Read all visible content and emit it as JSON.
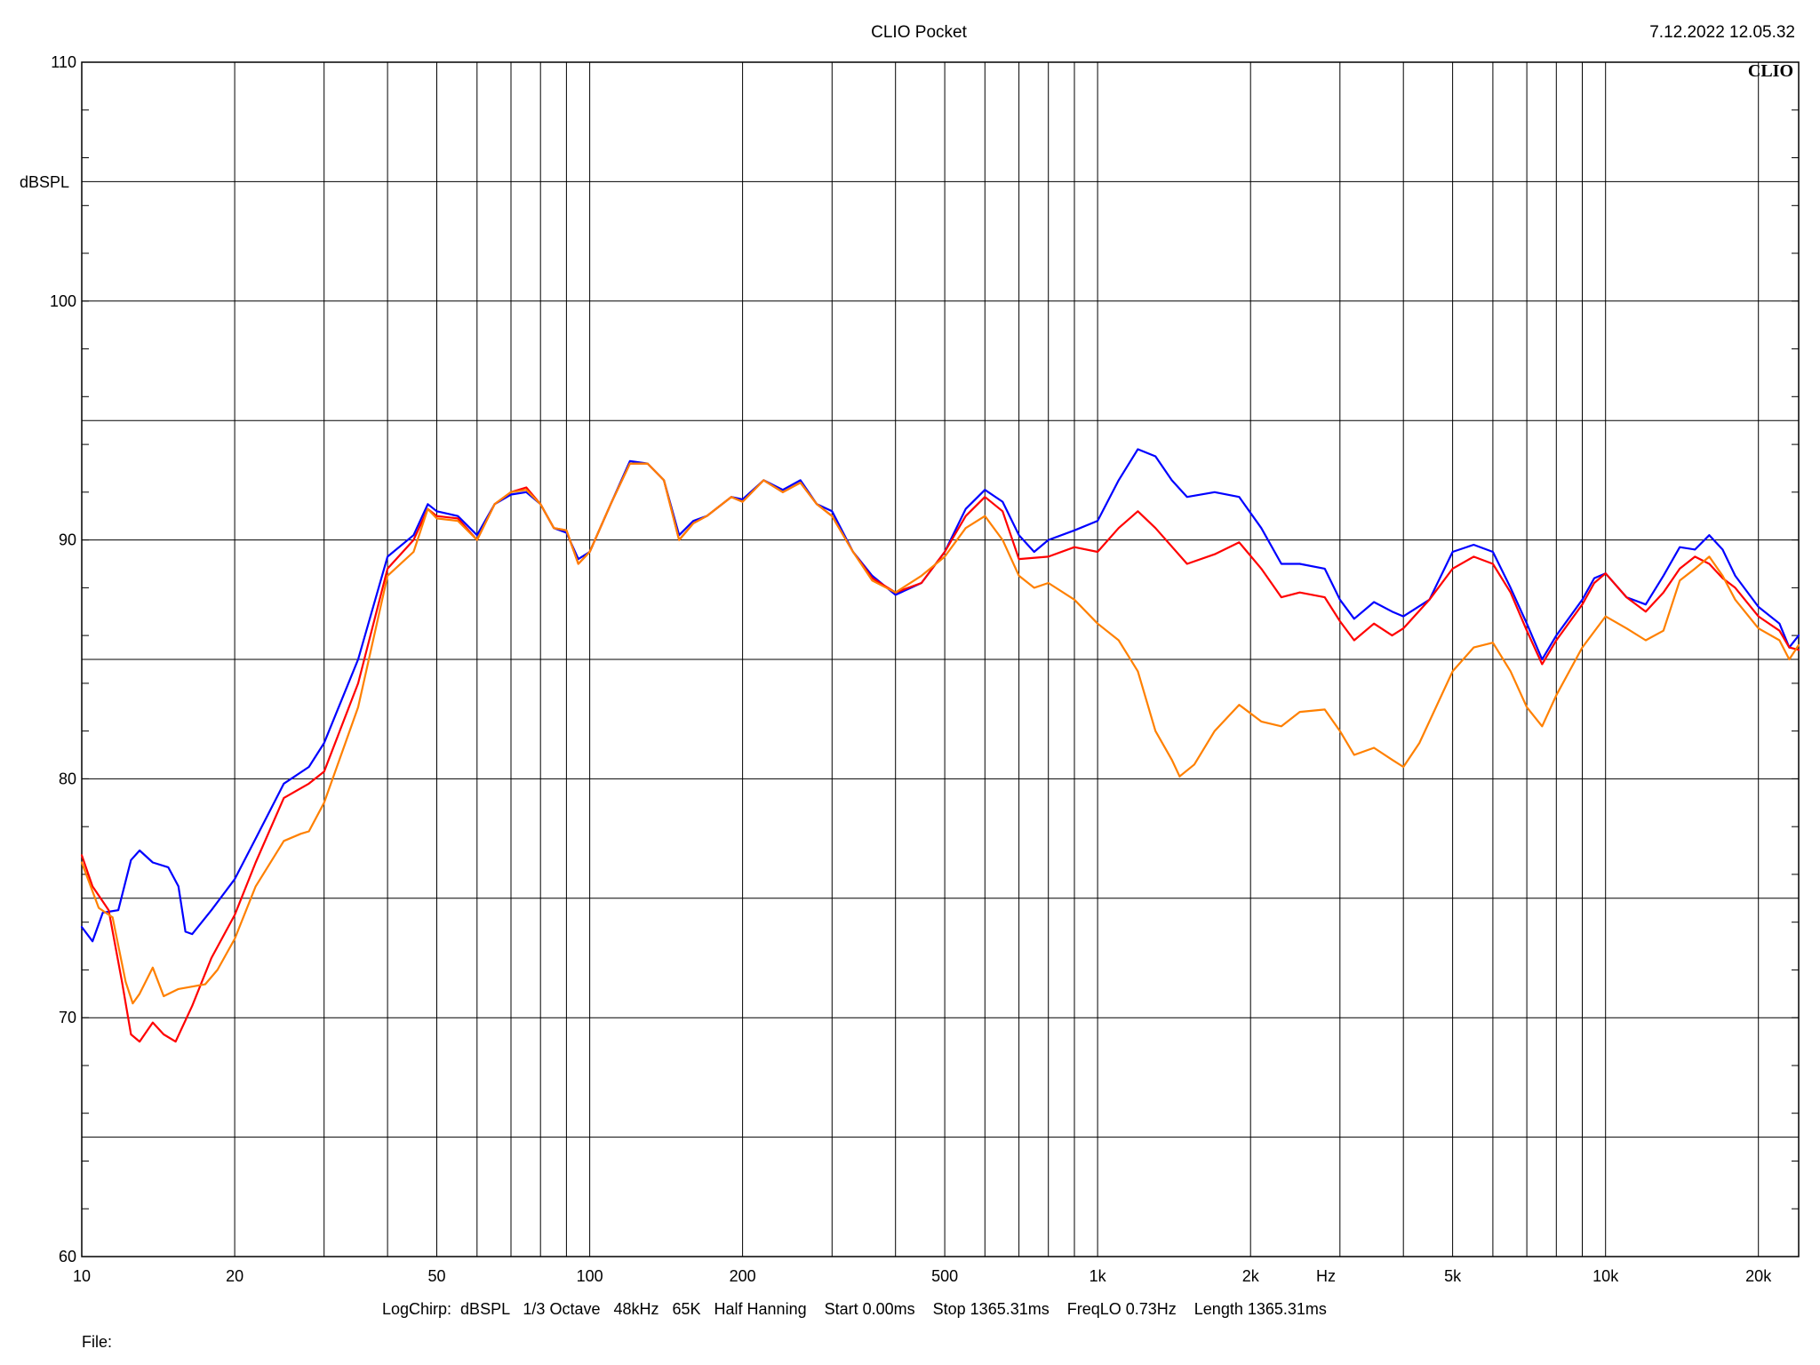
{
  "header": {
    "title": "CLIO Pocket",
    "timestamp": "7.12.2022 12.05.32",
    "logo": "CLIO"
  },
  "footer": {
    "settings": "LogChirp:  dBSPL   1/3 Octave   48kHz   65K   Half Hanning    Start 0.00ms    Stop 1365.31ms    FreqLO 0.73Hz    Length 1365.31ms",
    "file_label": "File:"
  },
  "chart_data": {
    "type": "line",
    "title": "CLIO Pocket",
    "xscale": "log",
    "xlim": [
      10,
      24000
    ],
    "ylim": [
      60,
      110
    ],
    "ylabel": "dBSPL",
    "xlabel": "Hz",
    "grid": true,
    "y_ticks": [
      60,
      70,
      80,
      90,
      100,
      110
    ],
    "y_grid": [
      60,
      65,
      70,
      75,
      80,
      85,
      90,
      95,
      100,
      105,
      110
    ],
    "x_tick_labels": [
      {
        "v": 10,
        "label": "10"
      },
      {
        "v": 20,
        "label": "20"
      },
      {
        "v": 50,
        "label": "50"
      },
      {
        "v": 100,
        "label": "100"
      },
      {
        "v": 200,
        "label": "200"
      },
      {
        "v": 500,
        "label": "500"
      },
      {
        "v": 1000,
        "label": "1k"
      },
      {
        "v": 2000,
        "label": "2k"
      },
      {
        "v": 5000,
        "label": "5k"
      },
      {
        "v": 10000,
        "label": "10k"
      },
      {
        "v": 20000,
        "label": "20k"
      }
    ],
    "x_grid": [
      20,
      30,
      40,
      50,
      60,
      70,
      80,
      90,
      100,
      200,
      300,
      400,
      500,
      600,
      700,
      800,
      900,
      1000,
      2000,
      3000,
      4000,
      5000,
      6000,
      7000,
      8000,
      9000,
      10000,
      20000
    ],
    "colors": {
      "blue": "#0000ff",
      "red": "#ff0000",
      "orange": "#ff8000"
    },
    "series": [
      {
        "color": "#0000ff",
        "points": [
          [
            10,
            73.8
          ],
          [
            10.5,
            73.2
          ],
          [
            11,
            74.4
          ],
          [
            11.8,
            74.5
          ],
          [
            12.5,
            76.6
          ],
          [
            13,
            77.0
          ],
          [
            13.8,
            76.5
          ],
          [
            14.8,
            76.3
          ],
          [
            15.5,
            75.5
          ],
          [
            16,
            73.6
          ],
          [
            16.5,
            73.5
          ],
          [
            18,
            74.5
          ],
          [
            20,
            75.8
          ],
          [
            22,
            77.5
          ],
          [
            25,
            79.8
          ],
          [
            28,
            80.5
          ],
          [
            30,
            81.5
          ],
          [
            35,
            85.0
          ],
          [
            40,
            89.3
          ],
          [
            45,
            90.2
          ],
          [
            48,
            91.5
          ],
          [
            50,
            91.2
          ],
          [
            55,
            91.0
          ],
          [
            60,
            90.2
          ],
          [
            65,
            91.5
          ],
          [
            70,
            91.9
          ],
          [
            75,
            92.0
          ],
          [
            80,
            91.5
          ],
          [
            85,
            90.5
          ],
          [
            90,
            90.3
          ],
          [
            95,
            89.2
          ],
          [
            100,
            89.5
          ],
          [
            110,
            91.5
          ],
          [
            120,
            93.3
          ],
          [
            130,
            93.2
          ],
          [
            140,
            92.5
          ],
          [
            150,
            90.2
          ],
          [
            160,
            90.8
          ],
          [
            170,
            91.0
          ],
          [
            190,
            91.8
          ],
          [
            200,
            91.7
          ],
          [
            220,
            92.5
          ],
          [
            240,
            92.1
          ],
          [
            260,
            92.5
          ],
          [
            280,
            91.5
          ],
          [
            300,
            91.2
          ],
          [
            330,
            89.5
          ],
          [
            360,
            88.5
          ],
          [
            400,
            87.7
          ],
          [
            450,
            88.2
          ],
          [
            500,
            89.5
          ],
          [
            550,
            91.3
          ],
          [
            600,
            92.1
          ],
          [
            650,
            91.6
          ],
          [
            700,
            90.2
          ],
          [
            750,
            89.5
          ],
          [
            800,
            90.0
          ],
          [
            900,
            90.4
          ],
          [
            1000,
            90.8
          ],
          [
            1100,
            92.5
          ],
          [
            1200,
            93.8
          ],
          [
            1300,
            93.5
          ],
          [
            1400,
            92.5
          ],
          [
            1500,
            91.8
          ],
          [
            1700,
            92.0
          ],
          [
            1900,
            91.8
          ],
          [
            2100,
            90.5
          ],
          [
            2300,
            89.0
          ],
          [
            2500,
            89.0
          ],
          [
            2800,
            88.8
          ],
          [
            3000,
            87.5
          ],
          [
            3200,
            86.7
          ],
          [
            3500,
            87.4
          ],
          [
            3800,
            87.0
          ],
          [
            4000,
            86.8
          ],
          [
            4500,
            87.5
          ],
          [
            5000,
            89.5
          ],
          [
            5500,
            89.8
          ],
          [
            6000,
            89.5
          ],
          [
            6500,
            88.0
          ],
          [
            7000,
            86.5
          ],
          [
            7500,
            85.0
          ],
          [
            8000,
            86.0
          ],
          [
            9000,
            87.5
          ],
          [
            9500,
            88.4
          ],
          [
            10000,
            88.6
          ],
          [
            11000,
            87.6
          ],
          [
            12000,
            87.3
          ],
          [
            13000,
            88.5
          ],
          [
            14000,
            89.7
          ],
          [
            15000,
            89.6
          ],
          [
            16000,
            90.2
          ],
          [
            17000,
            89.6
          ],
          [
            18000,
            88.5
          ],
          [
            20000,
            87.2
          ],
          [
            22000,
            86.5
          ],
          [
            23000,
            85.5
          ],
          [
            24000,
            86.0
          ]
        ]
      },
      {
        "color": "#ff0000",
        "points": [
          [
            10,
            76.8
          ],
          [
            10.5,
            75.5
          ],
          [
            11.3,
            74.5
          ],
          [
            12,
            71.5
          ],
          [
            12.5,
            69.3
          ],
          [
            13,
            69.0
          ],
          [
            13.8,
            69.8
          ],
          [
            14.5,
            69.3
          ],
          [
            15.3,
            69.0
          ],
          [
            16.5,
            70.5
          ],
          [
            18,
            72.5
          ],
          [
            20,
            74.3
          ],
          [
            22,
            76.5
          ],
          [
            25,
            79.2
          ],
          [
            28,
            79.8
          ],
          [
            30,
            80.3
          ],
          [
            35,
            84.0
          ],
          [
            40,
            88.8
          ],
          [
            45,
            90.0
          ],
          [
            48,
            91.3
          ],
          [
            50,
            91.0
          ],
          [
            55,
            90.9
          ],
          [
            60,
            90.0
          ],
          [
            65,
            91.5
          ],
          [
            70,
            92.0
          ],
          [
            75,
            92.2
          ],
          [
            80,
            91.5
          ],
          [
            85,
            90.5
          ],
          [
            90,
            90.4
          ],
          [
            95,
            89.0
          ],
          [
            100,
            89.5
          ],
          [
            110,
            91.5
          ],
          [
            120,
            93.2
          ],
          [
            130,
            93.2
          ],
          [
            140,
            92.5
          ],
          [
            150,
            90.0
          ],
          [
            160,
            90.7
          ],
          [
            170,
            91.0
          ],
          [
            190,
            91.8
          ],
          [
            200,
            91.6
          ],
          [
            220,
            92.5
          ],
          [
            240,
            92.0
          ],
          [
            260,
            92.4
          ],
          [
            280,
            91.5
          ],
          [
            300,
            91.0
          ],
          [
            330,
            89.5
          ],
          [
            360,
            88.4
          ],
          [
            400,
            87.8
          ],
          [
            450,
            88.2
          ],
          [
            500,
            89.5
          ],
          [
            550,
            91.0
          ],
          [
            600,
            91.8
          ],
          [
            650,
            91.2
          ],
          [
            700,
            89.2
          ],
          [
            800,
            89.3
          ],
          [
            900,
            89.7
          ],
          [
            1000,
            89.5
          ],
          [
            1100,
            90.5
          ],
          [
            1200,
            91.2
          ],
          [
            1300,
            90.5
          ],
          [
            1500,
            89.0
          ],
          [
            1700,
            89.4
          ],
          [
            1900,
            89.9
          ],
          [
            2100,
            88.8
          ],
          [
            2300,
            87.6
          ],
          [
            2500,
            87.8
          ],
          [
            2800,
            87.6
          ],
          [
            3000,
            86.6
          ],
          [
            3200,
            85.8
          ],
          [
            3500,
            86.5
          ],
          [
            3800,
            86.0
          ],
          [
            4000,
            86.3
          ],
          [
            4500,
            87.5
          ],
          [
            5000,
            88.8
          ],
          [
            5500,
            89.3
          ],
          [
            6000,
            89.0
          ],
          [
            6500,
            87.8
          ],
          [
            7000,
            86.2
          ],
          [
            7500,
            84.8
          ],
          [
            8000,
            85.8
          ],
          [
            9000,
            87.3
          ],
          [
            9500,
            88.2
          ],
          [
            10000,
            88.6
          ],
          [
            11000,
            87.6
          ],
          [
            12000,
            87.0
          ],
          [
            13000,
            87.8
          ],
          [
            14000,
            88.8
          ],
          [
            15000,
            89.3
          ],
          [
            16000,
            89.0
          ],
          [
            17000,
            88.4
          ],
          [
            18000,
            88.0
          ],
          [
            20000,
            86.8
          ],
          [
            22000,
            86.2
          ],
          [
            23000,
            85.5
          ],
          [
            24000,
            85.4
          ]
        ]
      },
      {
        "color": "#ff8000",
        "points": [
          [
            10,
            76.5
          ],
          [
            10.8,
            74.6
          ],
          [
            11.5,
            74.2
          ],
          [
            12.2,
            71.5
          ],
          [
            12.6,
            70.6
          ],
          [
            13,
            71.0
          ],
          [
            13.8,
            72.1
          ],
          [
            14.5,
            70.9
          ],
          [
            15.5,
            71.2
          ],
          [
            17.5,
            71.4
          ],
          [
            18.5,
            72.0
          ],
          [
            20,
            73.3
          ],
          [
            22,
            75.5
          ],
          [
            25,
            77.4
          ],
          [
            27,
            77.7
          ],
          [
            28,
            77.8
          ],
          [
            30,
            79.0
          ],
          [
            35,
            83.0
          ],
          [
            40,
            88.5
          ],
          [
            45,
            89.5
          ],
          [
            48,
            91.3
          ],
          [
            50,
            90.9
          ],
          [
            55,
            90.8
          ],
          [
            60,
            90.0
          ],
          [
            65,
            91.5
          ],
          [
            70,
            92.0
          ],
          [
            75,
            92.1
          ],
          [
            80,
            91.5
          ],
          [
            85,
            90.5
          ],
          [
            90,
            90.4
          ],
          [
            95,
            89.0
          ],
          [
            100,
            89.5
          ],
          [
            110,
            91.5
          ],
          [
            120,
            93.2
          ],
          [
            130,
            93.2
          ],
          [
            140,
            92.5
          ],
          [
            150,
            90.0
          ],
          [
            160,
            90.7
          ],
          [
            170,
            91.0
          ],
          [
            190,
            91.8
          ],
          [
            200,
            91.6
          ],
          [
            220,
            92.5
          ],
          [
            240,
            92.0
          ],
          [
            260,
            92.4
          ],
          [
            280,
            91.5
          ],
          [
            300,
            91.0
          ],
          [
            330,
            89.5
          ],
          [
            360,
            88.3
          ],
          [
            400,
            87.8
          ],
          [
            450,
            88.5
          ],
          [
            500,
            89.3
          ],
          [
            550,
            90.5
          ],
          [
            600,
            91.0
          ],
          [
            650,
            90.0
          ],
          [
            700,
            88.5
          ],
          [
            750,
            88.0
          ],
          [
            800,
            88.2
          ],
          [
            900,
            87.5
          ],
          [
            1000,
            86.5
          ],
          [
            1100,
            85.8
          ],
          [
            1200,
            84.5
          ],
          [
            1300,
            82.0
          ],
          [
            1400,
            80.8
          ],
          [
            1450,
            80.1
          ],
          [
            1550,
            80.6
          ],
          [
            1700,
            82.0
          ],
          [
            1900,
            83.1
          ],
          [
            2100,
            82.4
          ],
          [
            2300,
            82.2
          ],
          [
            2500,
            82.8
          ],
          [
            2800,
            82.9
          ],
          [
            3000,
            82.0
          ],
          [
            3200,
            81.0
          ],
          [
            3500,
            81.3
          ],
          [
            3800,
            80.8
          ],
          [
            4000,
            80.5
          ],
          [
            4300,
            81.5
          ],
          [
            5000,
            84.5
          ],
          [
            5500,
            85.5
          ],
          [
            6000,
            85.7
          ],
          [
            6500,
            84.5
          ],
          [
            7000,
            83.0
          ],
          [
            7500,
            82.2
          ],
          [
            8000,
            83.5
          ],
          [
            9000,
            85.5
          ],
          [
            10000,
            86.8
          ],
          [
            11000,
            86.3
          ],
          [
            12000,
            85.8
          ],
          [
            13000,
            86.2
          ],
          [
            14000,
            88.3
          ],
          [
            15000,
            88.8
          ],
          [
            16000,
            89.3
          ],
          [
            17000,
            88.5
          ],
          [
            18000,
            87.5
          ],
          [
            20000,
            86.3
          ],
          [
            22000,
            85.8
          ],
          [
            23000,
            85.0
          ],
          [
            24000,
            85.6
          ]
        ]
      }
    ]
  }
}
